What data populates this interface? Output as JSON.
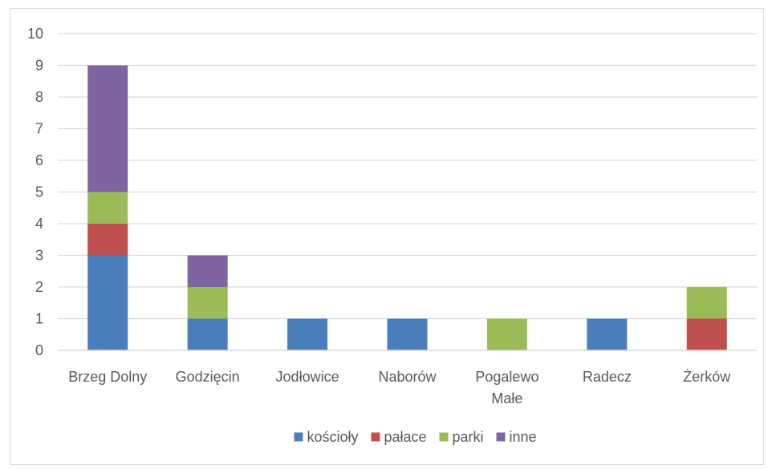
{
  "chart_data": {
    "type": "bar",
    "stacked": true,
    "title": "",
    "xlabel": "",
    "ylabel": "",
    "ylim": [
      0,
      10
    ],
    "yticks": [
      0,
      1,
      2,
      3,
      4,
      5,
      6,
      7,
      8,
      9,
      10
    ],
    "grid": true,
    "legend_position": "bottom",
    "categories": [
      "Brzeg Dolny",
      "Godzięcin",
      "Jodłowice",
      "Naborów",
      "Pogalewo Małe",
      "Radecz",
      "Żerków"
    ],
    "series": [
      {
        "name": "kościoły",
        "color": "#4a7ebb",
        "values": [
          3,
          1,
          1,
          1,
          0,
          1,
          0
        ]
      },
      {
        "name": "pałace",
        "color": "#c0504d",
        "values": [
          1,
          0,
          0,
          0,
          0,
          0,
          1
        ]
      },
      {
        "name": "parki",
        "color": "#9bbb59",
        "values": [
          1,
          1,
          0,
          0,
          1,
          0,
          1
        ]
      },
      {
        "name": "inne",
        "color": "#8064a2",
        "values": [
          4,
          1,
          0,
          0,
          0,
          0,
          0
        ]
      }
    ]
  }
}
